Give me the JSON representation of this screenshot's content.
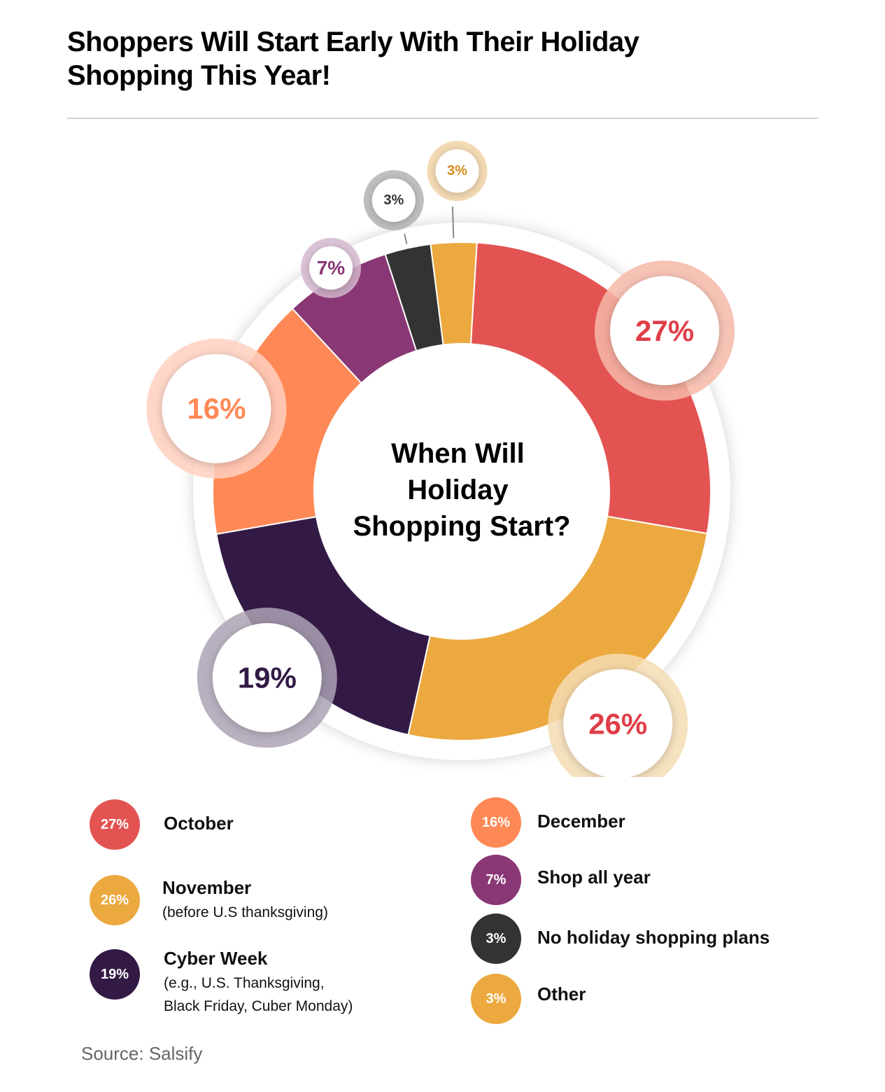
{
  "title": "Shoppers Will Start Early With Their Holiday Shopping This Year!",
  "source": "Source: Salsify",
  "chart_data": {
    "type": "pie",
    "title": "When Will Holiday Shopping Start?",
    "center_lines": [
      "When Will",
      "Holiday",
      "Shopping Start?"
    ],
    "slices": [
      {
        "label": "October",
        "value": 27,
        "display": "27%",
        "color": "#E35351",
        "text_color": "#E03E48",
        "halo": "#F6B9A8"
      },
      {
        "label": "November",
        "sublabel": "(before U.S thanksgiving)",
        "value": 26,
        "display": "26%",
        "color": "#EBA93F",
        "text_color": "#E03E48",
        "halo": "#F6DDB4"
      },
      {
        "label": "Cyber Week",
        "sublabel": [
          "(e.g., U.S. Thanksgiving,",
          "Black Friday, Cuber Monday)"
        ],
        "value": 19,
        "display": "19%",
        "color": "#331A45",
        "text_color": "#331A45",
        "halo": "#ADA3B5"
      },
      {
        "label": "December",
        "value": 16,
        "display": "16%",
        "color": "#FF8956",
        "text_color": "#FF8956",
        "halo": "#FFD0C0"
      },
      {
        "label": "Shop all year",
        "value": 7,
        "display": "7%",
        "color": "#8A3775",
        "text_color": "#8A3775",
        "halo": "#D6BAD0"
      },
      {
        "label": "No holiday shopping plans",
        "value": 3,
        "display": "3%",
        "color": "#333333",
        "text_color": "#333333",
        "halo": "#B5B5B5"
      },
      {
        "label": "Other",
        "value": 3,
        "display": "3%",
        "color": "#EBA93F",
        "text_color": "#D98A1C",
        "halo": "#F2D5A8"
      }
    ]
  }
}
